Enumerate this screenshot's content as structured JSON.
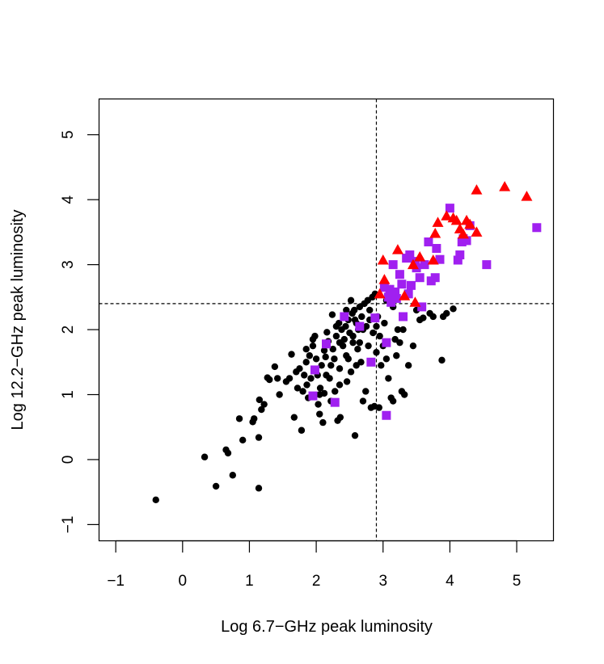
{
  "chart_data": {
    "type": "scatter",
    "title": "",
    "xlabel": "Log 6.7−GHz peak luminosity",
    "ylabel": "Log 12.2−GHz peak luminosity",
    "xlim": [
      -1.25,
      5.55
    ],
    "ylim": [
      -1.25,
      5.55
    ],
    "xticks": [
      -1,
      0,
      1,
      2,
      3,
      4,
      5
    ],
    "yticks": [
      -1,
      0,
      1,
      2,
      3,
      4,
      5
    ],
    "xtick_labels": [
      "−1",
      "0",
      "1",
      "2",
      "3",
      "4",
      "5"
    ],
    "ytick_labels": [
      "−1",
      "0",
      "1",
      "2",
      "3",
      "4",
      "5"
    ],
    "grid": false,
    "reference_lines": [
      {
        "orientation": "vertical",
        "value": 2.9,
        "style": "dashed"
      },
      {
        "orientation": "horizontal",
        "value": 2.4,
        "style": "dashed"
      }
    ],
    "series": [
      {
        "marker": "circle",
        "color": "#000000",
        "points": [
          [
            -0.4,
            -0.62
          ],
          [
            0.33,
            0.04
          ],
          [
            0.5,
            -0.41
          ],
          [
            0.65,
            0.15
          ],
          [
            0.75,
            -0.24
          ],
          [
            0.68,
            0.1
          ],
          [
            0.85,
            0.63
          ],
          [
            0.9,
            0.3
          ],
          [
            1.05,
            0.58
          ],
          [
            1.07,
            0.63
          ],
          [
            1.14,
            -0.44
          ],
          [
            1.14,
            0.34
          ],
          [
            1.15,
            0.92
          ],
          [
            1.18,
            0.77
          ],
          [
            1.22,
            0.85
          ],
          [
            1.27,
            1.26
          ],
          [
            1.3,
            1.23
          ],
          [
            1.42,
            1.25
          ],
          [
            1.38,
            1.43
          ],
          [
            1.45,
            1.0
          ],
          [
            1.55,
            1.2
          ],
          [
            1.6,
            1.25
          ],
          [
            1.63,
            1.62
          ],
          [
            1.67,
            0.65
          ],
          [
            1.72,
            1.1
          ],
          [
            1.75,
            1.4
          ],
          [
            1.78,
            0.45
          ],
          [
            1.8,
            1.05
          ],
          [
            1.82,
            1.3
          ],
          [
            1.85,
            1.5
          ],
          [
            1.86,
            1.15
          ],
          [
            1.88,
            0.95
          ],
          [
            1.9,
            1.6
          ],
          [
            1.92,
            1.25
          ],
          [
            1.95,
            1.75
          ],
          [
            1.98,
            1.9
          ],
          [
            2.0,
            1.55
          ],
          [
            2.02,
            1.3
          ],
          [
            2.03,
            0.85
          ],
          [
            2.05,
            0.7
          ],
          [
            2.06,
            1.1
          ],
          [
            2.08,
            1.45
          ],
          [
            2.1,
            0.57
          ],
          [
            2.12,
            1.02
          ],
          [
            2.14,
            1.58
          ],
          [
            2.16,
            1.96
          ],
          [
            2.18,
            1.82
          ],
          [
            2.2,
            1.25
          ],
          [
            2.22,
            0.9
          ],
          [
            2.24,
            2.23
          ],
          [
            2.25,
            1.7
          ],
          [
            2.27,
            1.55
          ],
          [
            2.28,
            1.05
          ],
          [
            2.3,
            1.9
          ],
          [
            2.32,
            0.6
          ],
          [
            2.34,
            2.1
          ],
          [
            2.35,
            1.4
          ],
          [
            2.36,
            0.65
          ],
          [
            2.38,
            2.0
          ],
          [
            2.4,
            1.75
          ],
          [
            2.42,
            1.85
          ],
          [
            2.44,
            2.05
          ],
          [
            2.45,
            1.6
          ],
          [
            2.46,
            1.2
          ],
          [
            2.48,
            2.15
          ],
          [
            2.5,
            1.95
          ],
          [
            2.52,
            1.35
          ],
          [
            2.54,
            2.25
          ],
          [
            2.55,
            1.8
          ],
          [
            2.57,
            2.3
          ],
          [
            2.58,
            0.37
          ],
          [
            2.6,
            2.1
          ],
          [
            2.62,
            1.7
          ],
          [
            2.63,
            2.0
          ],
          [
            2.65,
            2.35
          ],
          [
            2.67,
            1.5
          ],
          [
            2.68,
            2.2
          ],
          [
            2.7,
            0.9
          ],
          [
            2.72,
            2.4
          ],
          [
            2.74,
            1.05
          ],
          [
            2.75,
            2.05
          ],
          [
            2.77,
            2.45
          ],
          [
            2.78,
            1.75
          ],
          [
            2.8,
            2.3
          ],
          [
            2.82,
            0.8
          ],
          [
            2.84,
            2.5
          ],
          [
            2.85,
            1.95
          ],
          [
            2.87,
            0.82
          ],
          [
            2.88,
            2.55
          ],
          [
            2.9,
            1.65
          ],
          [
            2.92,
            2.2
          ],
          [
            2.94,
            0.8
          ],
          [
            2.95,
            1.9
          ],
          [
            2.97,
            1.45
          ],
          [
            3.0,
            1.75
          ],
          [
            3.02,
            2.1
          ],
          [
            3.05,
            1.55
          ],
          [
            3.08,
            1.25
          ],
          [
            3.12,
            0.95
          ],
          [
            3.15,
            0.9
          ],
          [
            3.2,
            1.6
          ],
          [
            3.22,
            2.0
          ],
          [
            3.25,
            1.8
          ],
          [
            3.28,
            1.05
          ],
          [
            3.32,
            1.0
          ],
          [
            3.38,
            1.45
          ],
          [
            3.45,
            1.75
          ],
          [
            3.5,
            2.3
          ],
          [
            3.55,
            2.15
          ],
          [
            3.6,
            2.18
          ],
          [
            3.7,
            2.25
          ],
          [
            3.75,
            2.2
          ],
          [
            3.9,
            2.2
          ],
          [
            3.95,
            2.25
          ],
          [
            4.05,
            2.32
          ],
          [
            3.88,
            1.53
          ],
          [
            3.15,
            2.35
          ],
          [
            2.7,
            2.0
          ],
          [
            2.55,
            1.9
          ],
          [
            2.45,
            2.3
          ],
          [
            1.95,
            1.85
          ],
          [
            2.15,
            1.3
          ],
          [
            2.35,
            1.8
          ],
          [
            2.05,
            1.0
          ],
          [
            1.7,
            1.35
          ],
          [
            1.85,
            1.7
          ],
          [
            2.65,
            1.8
          ],
          [
            2.8,
            2.15
          ],
          [
            2.52,
            2.45
          ],
          [
            2.35,
            1.15
          ],
          [
            2.9,
            2.05
          ],
          [
            3.05,
            2.45
          ],
          [
            3.3,
            2.0
          ],
          [
            3.18,
            1.85
          ],
          [
            2.3,
            2.05
          ],
          [
            2.58,
            2.15
          ],
          [
            2.12,
            1.68
          ],
          [
            2.48,
            1.55
          ],
          [
            2.22,
            1.45
          ],
          [
            2.6,
            1.45
          ]
        ]
      },
      {
        "marker": "square",
        "color": "#a020f0",
        "points": [
          [
            1.95,
            0.98
          ],
          [
            1.98,
            1.38
          ],
          [
            2.15,
            1.78
          ],
          [
            2.28,
            0.88
          ],
          [
            2.42,
            2.2
          ],
          [
            2.65,
            2.05
          ],
          [
            2.82,
            1.5
          ],
          [
            2.88,
            2.18
          ],
          [
            3.02,
            2.65
          ],
          [
            3.05,
            0.68
          ],
          [
            3.05,
            1.8
          ],
          [
            3.08,
            2.5
          ],
          [
            3.1,
            2.62
          ],
          [
            3.12,
            2.42
          ],
          [
            3.15,
            3.0
          ],
          [
            3.18,
            2.58
          ],
          [
            3.2,
            2.48
          ],
          [
            3.25,
            2.85
          ],
          [
            3.28,
            2.7
          ],
          [
            3.3,
            2.2
          ],
          [
            3.35,
            3.1
          ],
          [
            3.38,
            2.55
          ],
          [
            3.4,
            3.15
          ],
          [
            3.42,
            2.68
          ],
          [
            3.48,
            3.05
          ],
          [
            3.5,
            2.95
          ],
          [
            3.55,
            2.8
          ],
          [
            3.58,
            2.35
          ],
          [
            3.62,
            3.0
          ],
          [
            3.68,
            3.35
          ],
          [
            3.72,
            2.75
          ],
          [
            3.78,
            2.8
          ],
          [
            3.8,
            3.25
          ],
          [
            3.85,
            3.08
          ],
          [
            4.0,
            3.87
          ],
          [
            4.12,
            3.07
          ],
          [
            4.15,
            3.15
          ],
          [
            4.18,
            3.35
          ],
          [
            4.2,
            3.4
          ],
          [
            4.25,
            3.37
          ],
          [
            4.3,
            3.6
          ],
          [
            4.55,
            3.0
          ],
          [
            5.3,
            3.57
          ]
        ]
      },
      {
        "marker": "triangle",
        "color": "#ff0000",
        "points": [
          [
            2.95,
            2.55
          ],
          [
            3.0,
            3.07
          ],
          [
            3.02,
            2.77
          ],
          [
            3.22,
            3.23
          ],
          [
            3.32,
            2.52
          ],
          [
            3.45,
            3.0
          ],
          [
            3.48,
            2.42
          ],
          [
            3.55,
            3.12
          ],
          [
            3.75,
            3.07
          ],
          [
            3.78,
            3.48
          ],
          [
            3.82,
            3.65
          ],
          [
            3.95,
            3.75
          ],
          [
            4.05,
            3.72
          ],
          [
            4.1,
            3.68
          ],
          [
            4.15,
            3.55
          ],
          [
            4.2,
            3.47
          ],
          [
            4.25,
            3.68
          ],
          [
            4.3,
            3.62
          ],
          [
            4.4,
            3.5
          ],
          [
            4.4,
            4.15
          ],
          [
            4.82,
            4.2
          ],
          [
            5.15,
            4.05
          ]
        ]
      }
    ]
  }
}
